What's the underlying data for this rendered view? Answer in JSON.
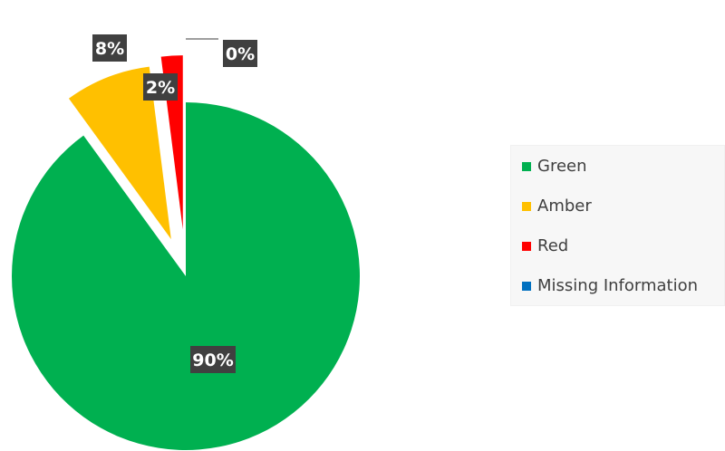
{
  "chart_data": {
    "type": "pie",
    "exploded": true,
    "categories": [
      "Green",
      "Amber",
      "Red",
      "Missing Information"
    ],
    "values": [
      90,
      8,
      2,
      0
    ],
    "data_labels": [
      "90%",
      "8%",
      "2%",
      "0%"
    ],
    "colors": [
      "#00b050",
      "#ffc000",
      "#ff0000",
      "#0070c0"
    ],
    "label_style": {
      "background": "#404040",
      "text_color": "#ffffff"
    },
    "legend_position": "right"
  }
}
